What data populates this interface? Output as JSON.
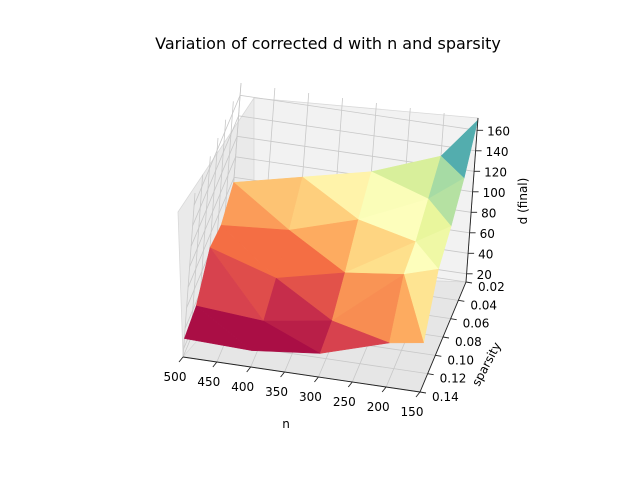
{
  "chart_data": {
    "type": "surface",
    "title": "Variation of corrected d with n and sparsity",
    "xlabel": "n",
    "ylabel": "sparsity",
    "zlabel": "d (final)",
    "x_ticks": [
      "500",
      "450",
      "400",
      "350",
      "300",
      "250",
      "200",
      "150"
    ],
    "y_ticks": [
      "0.02",
      "0.04",
      "0.06",
      "0.08",
      "0.10",
      "0.12",
      "0.14"
    ],
    "z_ticks": [
      "20",
      "40",
      "60",
      "80",
      "100",
      "120",
      "140",
      "160"
    ],
    "xlim": [
      150,
      500
    ],
    "ylim": [
      0.02,
      0.14
    ],
    "zlim": [
      20,
      160
    ],
    "colormap": "Spectral",
    "grid": true,
    "surface": {
      "n": [
        500,
        400,
        300,
        200,
        150
      ],
      "sparsity": [
        0.02,
        0.05,
        0.08,
        0.11,
        0.14
      ],
      "d": [
        [
          75,
          90,
          105,
          130,
          170
        ],
        [
          60,
          65,
          85,
          115,
          140
        ],
        [
          65,
          45,
          60,
          100,
          120
        ],
        [
          35,
          30,
          40,
          95,
          105
        ],
        [
          30,
          28,
          35,
          55,
          60
        ]
      ]
    }
  }
}
